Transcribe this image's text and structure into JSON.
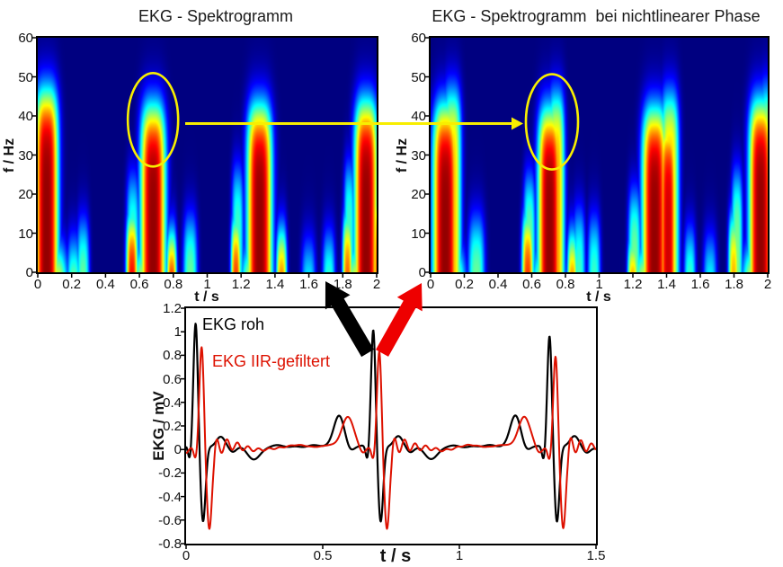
{
  "colors": {
    "background": "#ffffff",
    "axis": "#000000",
    "text": "#111111",
    "spectrogram_background": "#00008c",
    "annotation_yellow": "#f8ee00",
    "arrow_black": "#000000",
    "arrow_red": "#ee0000",
    "ekg_raw": "#000000",
    "ekg_filtered": "#dd1100"
  },
  "chart_data": [
    {
      "id": "spectrogram_left",
      "type": "heatmap",
      "title": "EKG - Spektrogramm",
      "xlabel": "t / s",
      "ylabel": "f / Hz",
      "xlim": [
        0,
        2
      ],
      "ylim": [
        0,
        60
      ],
      "x_tick_labels": [
        "0",
        "0.2",
        "0.4",
        "0.6",
        "0.8",
        "1",
        "1.2",
        "1.4",
        "1.6",
        "1.8",
        "2"
      ],
      "y_tick_labels": [
        "0",
        "10",
        "20",
        "30",
        "40",
        "50",
        "60"
      ],
      "colormap": "jet",
      "bursts": [
        {
          "t": 0.05,
          "f_top": 45,
          "amp": 0.98,
          "t_width": 0.07
        },
        {
          "t": 0.1,
          "f_top": 4,
          "amp": 0.78,
          "t_width": 0.075
        },
        {
          "t": 0.21,
          "f_top": 6,
          "amp": 0.55,
          "t_width": 0.04
        },
        {
          "t": 0.265,
          "f_top": 11,
          "amp": 0.5,
          "t_width": 0.038
        },
        {
          "t": 0.555,
          "f_top": 13,
          "amp": 0.9,
          "t_width": 0.035
        },
        {
          "t": 0.56,
          "f_top": 23,
          "amp": 0.45,
          "t_width": 0.038
        },
        {
          "t": 0.65,
          "f_top": 4,
          "amp": 0.8,
          "t_width": 0.09
        },
        {
          "t": 0.68,
          "f_top": 41,
          "amp": 0.98,
          "t_width": 0.075
        },
        {
          "t": 0.79,
          "f_top": 8,
          "amp": 0.9,
          "t_width": 0.03
        },
        {
          "t": 0.9,
          "f_top": 12,
          "amp": 0.5,
          "t_width": 0.042
        },
        {
          "t": 1.17,
          "f_top": 12,
          "amp": 0.85,
          "t_width": 0.03
        },
        {
          "t": 1.18,
          "f_top": 25,
          "amp": 0.45,
          "t_width": 0.035
        },
        {
          "t": 1.28,
          "f_top": 4,
          "amp": 0.8,
          "t_width": 0.08
        },
        {
          "t": 1.31,
          "f_top": 41,
          "amp": 0.98,
          "t_width": 0.075
        },
        {
          "t": 1.44,
          "f_top": 9,
          "amp": 0.8,
          "t_width": 0.032
        },
        {
          "t": 1.6,
          "f_top": 6,
          "amp": 0.42,
          "t_width": 0.042
        },
        {
          "t": 1.72,
          "f_top": 8,
          "amp": 0.47,
          "t_width": 0.038
        },
        {
          "t": 1.83,
          "f_top": 13,
          "amp": 0.8,
          "t_width": 0.03
        },
        {
          "t": 1.84,
          "f_top": 26,
          "amp": 0.45,
          "t_width": 0.032
        },
        {
          "t": 1.9,
          "f_top": 4,
          "amp": 0.8,
          "t_width": 0.08
        },
        {
          "t": 1.94,
          "f_top": 42,
          "amp": 0.98,
          "t_width": 0.07
        },
        {
          "t": 2.02,
          "f_top": 20,
          "amp": 0.9,
          "t_width": 0.038
        }
      ]
    },
    {
      "id": "spectrogram_right",
      "type": "heatmap",
      "title": "EKG - Spektrogramm  bei nichtlinearer Phase",
      "xlabel": "t / s",
      "ylabel": "f / Hz",
      "xlim": [
        0,
        2
      ],
      "ylim": [
        0,
        60
      ],
      "x_tick_labels": [
        "0",
        "0.2",
        "0.4",
        "0.6",
        "0.8",
        "1",
        "1.2",
        "1.4",
        "1.6",
        "1.8",
        "2"
      ],
      "y_tick_labels": [
        "0",
        "10",
        "20",
        "30",
        "40",
        "50",
        "60"
      ],
      "colormap": "jet",
      "bursts": [
        {
          "t": 0.085,
          "f_top": 41,
          "amp": 0.98,
          "t_width": 0.075
        },
        {
          "t": 0.125,
          "f_top": 45,
          "amp": 0.7,
          "t_width": 0.055
        },
        {
          "t": 0.12,
          "f_top": 4,
          "amp": 0.78,
          "t_width": 0.085
        },
        {
          "t": 0.27,
          "f_top": 12,
          "amp": 0.5,
          "t_width": 0.05
        },
        {
          "t": 0.575,
          "f_top": 13,
          "amp": 0.85,
          "t_width": 0.035
        },
        {
          "t": 0.585,
          "f_top": 23,
          "amp": 0.5,
          "t_width": 0.036
        },
        {
          "t": 0.7,
          "f_top": 4,
          "amp": 0.8,
          "t_width": 0.1
        },
        {
          "t": 0.705,
          "f_top": 40,
          "amp": 0.98,
          "t_width": 0.07
        },
        {
          "t": 0.745,
          "f_top": 44,
          "amp": 0.72,
          "t_width": 0.05
        },
        {
          "t": 0.84,
          "f_top": 8,
          "amp": 0.8,
          "t_width": 0.03
        },
        {
          "t": 0.88,
          "f_top": 14,
          "amp": 0.45,
          "t_width": 0.038
        },
        {
          "t": 0.97,
          "f_top": 12,
          "amp": 0.45,
          "t_width": 0.038
        },
        {
          "t": 1.2,
          "f_top": 7,
          "amp": 0.8,
          "t_width": 0.032
        },
        {
          "t": 1.21,
          "f_top": 19,
          "amp": 0.5,
          "t_width": 0.038
        },
        {
          "t": 1.3,
          "f_top": 4,
          "amp": 0.8,
          "t_width": 0.1
        },
        {
          "t": 1.33,
          "f_top": 40,
          "amp": 0.98,
          "t_width": 0.075
        },
        {
          "t": 1.41,
          "f_top": 37,
          "amp": 0.92,
          "t_width": 0.05
        },
        {
          "t": 1.42,
          "f_top": 44,
          "amp": 0.7,
          "t_width": 0.055
        },
        {
          "t": 1.54,
          "f_top": 9,
          "amp": 0.47,
          "t_width": 0.035
        },
        {
          "t": 1.66,
          "f_top": 7,
          "amp": 0.42,
          "t_width": 0.04
        },
        {
          "t": 1.8,
          "f_top": 13,
          "amp": 0.72,
          "t_width": 0.032
        },
        {
          "t": 1.82,
          "f_top": 24,
          "amp": 0.5,
          "t_width": 0.034
        },
        {
          "t": 1.93,
          "f_top": 4,
          "amp": 0.8,
          "t_width": 0.08
        },
        {
          "t": 1.96,
          "f_top": 42,
          "amp": 0.98,
          "t_width": 0.07
        },
        {
          "t": 2.0,
          "f_top": 45,
          "amp": 0.7,
          "t_width": 0.05
        },
        {
          "t": 2.04,
          "f_top": 30,
          "amp": 0.85,
          "t_width": 0.045
        }
      ]
    },
    {
      "id": "ekg_time_series",
      "type": "line",
      "xlabel": "t / s",
      "ylabel": "EKG / mV",
      "xlim": [
        0,
        1.5
      ],
      "ylim": [
        -0.8,
        1.2
      ],
      "x_tick_labels": [
        "0",
        "0.5",
        "1",
        "1.5"
      ],
      "y_tick_labels": [
        "1.2",
        "1",
        "0.8",
        "0.6",
        "0.4",
        "0.2",
        "0",
        "-0.2",
        "-0.4",
        "-0.6",
        "-0.8"
      ],
      "series": [
        {
          "name": "EKG roh",
          "color": "#000000",
          "r_peak_times": [
            0.035,
            0.685,
            1.33
          ],
          "r_peak_amps": [
            1.05,
            1.0,
            0.95
          ],
          "s_depth": -0.64,
          "p_wave_amp": 0.27,
          "baseline": 0.028
        },
        {
          "name": "EKG IIR-gefiltert",
          "color": "#dd1100",
          "delay_s": 0.022,
          "r_peak_amps": [
            0.85,
            0.82,
            0.78
          ],
          "s_depth": -0.7,
          "p_wave_amp": 0.255,
          "ringing": {
            "amp": 0.085,
            "freq_hz": 26,
            "decay_s": 0.085
          },
          "baseline": 0.03
        }
      ]
    }
  ],
  "annotations": {
    "left_ellipse": {
      "t_center": 0.68,
      "f_center": 39
    },
    "right_ellipse": {
      "t_center": 0.72,
      "f_center": 38.5
    },
    "yellow_arrow_meaning": "burst correspondence between spectrograms",
    "black_arrow_meaning": "raw EKG to left spectrogram",
    "red_arrow_meaning": "filtered EKG to right spectrogram"
  }
}
